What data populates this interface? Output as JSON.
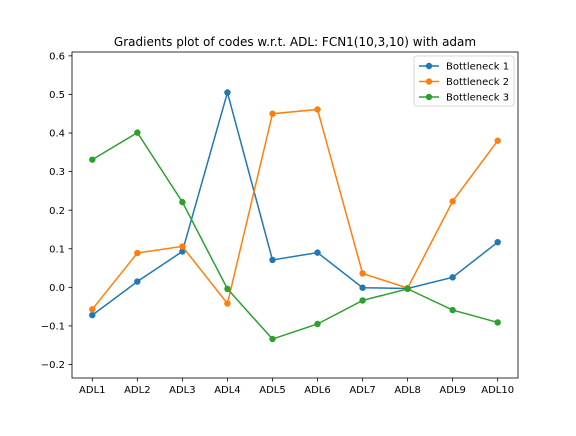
{
  "chart_data": {
    "type": "line",
    "title": "Gradients plot of codes w.r.t. ADL: FCN1(10,3,10) with adam",
    "xlabel": "",
    "ylabel": "",
    "categories": [
      "ADL1",
      "ADL2",
      "ADL3",
      "ADL4",
      "ADL5",
      "ADL6",
      "ADL7",
      "ADL8",
      "ADL9",
      "ADL10"
    ],
    "ylim": [
      -0.235,
      0.61
    ],
    "yticks": [
      -0.2,
      -0.1,
      0.0,
      0.1,
      0.2,
      0.3,
      0.4,
      0.5,
      0.6
    ],
    "ytick_labels": [
      "−0.2",
      "−0.1",
      "0.0",
      "0.1",
      "0.2",
      "0.3",
      "0.4",
      "0.5",
      "0.6"
    ],
    "grid": false,
    "legend_position": "upper right",
    "series": [
      {
        "name": "Bottleneck 1",
        "color": "#1f77b4",
        "values": [
          -0.072,
          0.015,
          0.093,
          0.505,
          0.071,
          0.09,
          -0.001,
          -0.003,
          0.026,
          0.117
        ]
      },
      {
        "name": "Bottleneck 2",
        "color": "#ff7f0e",
        "values": [
          -0.057,
          0.089,
          0.106,
          -0.042,
          0.45,
          0.461,
          0.036,
          -0.002,
          0.223,
          0.38
        ]
      },
      {
        "name": "Bottleneck 3",
        "color": "#2ca02c",
        "values": [
          0.331,
          0.401,
          0.221,
          -0.004,
          -0.134,
          -0.095,
          -0.034,
          -0.004,
          -0.059,
          -0.091
        ]
      }
    ]
  }
}
